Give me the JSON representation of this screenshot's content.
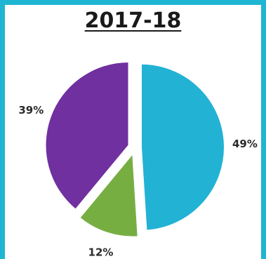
{
  "chart_data": {
    "type": "pie",
    "title": "2017-18",
    "values": [
      49,
      12,
      39
    ],
    "labels": [
      "49%",
      "12%",
      "39%"
    ],
    "colors": [
      "#22b2d4",
      "#77ae42",
      "#7030a0"
    ],
    "exploded": true
  },
  "frame": {
    "border_color": "#1fb6d3"
  }
}
